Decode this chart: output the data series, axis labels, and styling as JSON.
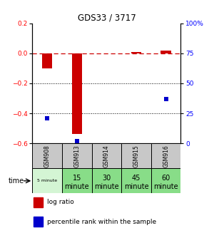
{
  "title": "GDS33 / 3717",
  "samples": [
    "GSM908",
    "GSM913",
    "GSM914",
    "GSM915",
    "GSM916"
  ],
  "time_labels_top": [
    "5 minute",
    "15",
    "30",
    "45",
    "60"
  ],
  "time_labels_bot": [
    "",
    "minute",
    "minute",
    "minute",
    "minute"
  ],
  "log_ratio": [
    -0.1,
    -0.54,
    0.0,
    0.01,
    0.02
  ],
  "percentile_rank": [
    21.0,
    2.0,
    null,
    null,
    37.0
  ],
  "ylim_left": [
    -0.6,
    0.2
  ],
  "ylim_right": [
    0,
    100
  ],
  "yticks_left": [
    -0.6,
    -0.4,
    -0.2,
    0.0,
    0.2
  ],
  "yticks_right": [
    0,
    25,
    50,
    75,
    100
  ],
  "ytick_labels_right": [
    "0",
    "25",
    "50",
    "75",
    "100%"
  ],
  "bar_color": "#cc0000",
  "dot_color": "#0000cc",
  "dashed_color": "#cc0000",
  "table_bg_gray": "#c8c8c8",
  "table_bg_green_light": "#d4f5d4",
  "table_bg_green": "#88dd88",
  "fig_width": 2.93,
  "fig_height": 3.27
}
